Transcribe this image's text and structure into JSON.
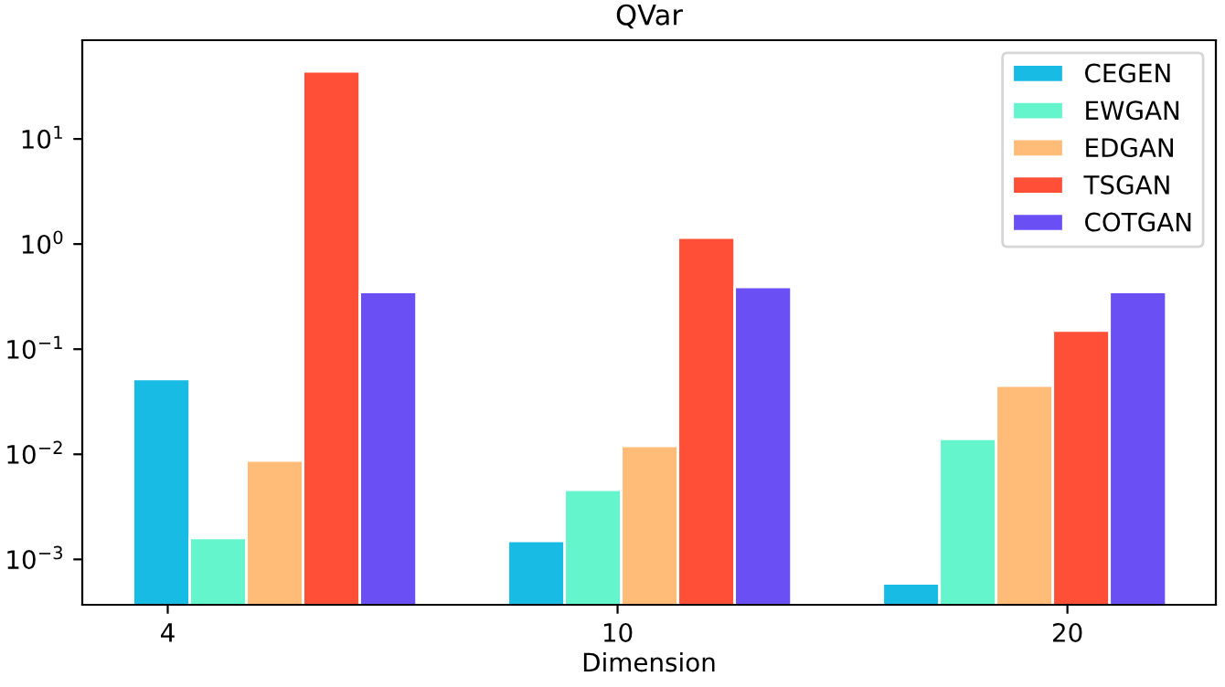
{
  "chart_data": {
    "type": "bar",
    "title": "QVar",
    "xlabel": "Dimension",
    "categories": [
      "4",
      "10",
      "20"
    ],
    "series": [
      {
        "name": "CEGEN",
        "color": "#00b4e0",
        "values": [
          0.052,
          0.0015,
          0.00059
        ]
      },
      {
        "name": "EWGAN",
        "color": "#55f5c8",
        "values": [
          0.0016,
          0.0046,
          0.014
        ]
      },
      {
        "name": "EDGAN",
        "color": "#ffb46a",
        "values": [
          0.0087,
          0.012,
          0.045
        ]
      },
      {
        "name": "TSGAN",
        "color": "#ff3c22",
        "values": [
          44,
          1.15,
          0.15
        ]
      },
      {
        "name": "COTGAN",
        "color": "#5a3cf5",
        "values": [
          0.35,
          0.39,
          0.35
        ]
      }
    ],
    "log": "y",
    "ylim": [
      0.00037,
      87
    ],
    "yticks": [
      {
        "value": 0.001,
        "label": "10$^{−3}$"
      },
      {
        "value": 0.01,
        "label": "10$^{−2}$"
      },
      {
        "value": 0.1,
        "label": "10$^{−1}$"
      },
      {
        "value": 1,
        "label": "10$^{0}$"
      },
      {
        "value": 10,
        "label": "10$^{1}$"
      }
    ],
    "grid": false,
    "legend": "top right"
  }
}
